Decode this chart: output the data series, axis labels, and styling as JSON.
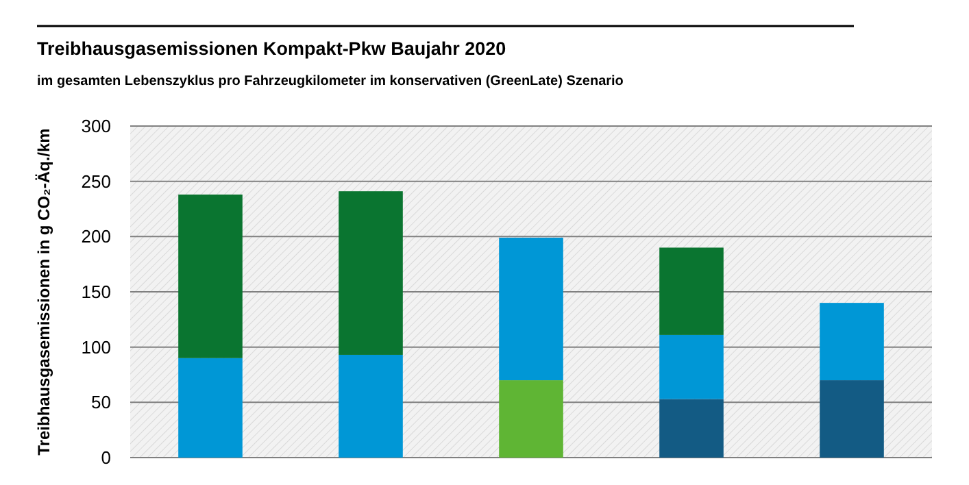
{
  "chart_data": {
    "type": "bar",
    "stacked": true,
    "title": "Treibhausgasemissionen Kompakt-Pkw Baujahr 2020",
    "subtitle": "im gesamten Lebenszyklus pro Fahrzeugkilometer im konservativen (GreenLate) Szenario",
    "ylabel": "Treibhausgasemissionen in g CO₂-Äq./km",
    "categories": [
      null,
      null,
      null,
      null,
      null
    ],
    "series": [
      {
        "color": "#135b84",
        "values": [
          null,
          null,
          null,
          53,
          70
        ]
      },
      {
        "color": "#5fb534",
        "values": [
          null,
          null,
          70,
          null,
          null
        ]
      },
      {
        "color": "#0097d6",
        "values": [
          90,
          93,
          129,
          58,
          70
        ]
      },
      {
        "color": "#0a7530",
        "values": [
          148,
          148,
          null,
          79,
          null
        ]
      }
    ],
    "ylim": [
      0,
      300
    ],
    "yticks": [
      0,
      50,
      100,
      150,
      200,
      250,
      300
    ],
    "grid": "y"
  }
}
